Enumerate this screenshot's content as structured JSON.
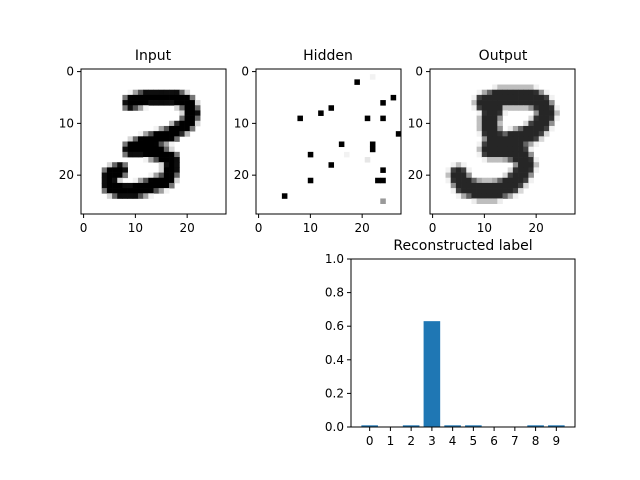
{
  "chart_data": [
    {
      "type": "heatmap",
      "title": "Input",
      "xlim": [
        0,
        27
      ],
      "ylim": [
        27,
        0
      ],
      "x_ticks": [
        "0",
        "10",
        "20"
      ],
      "y_ticks": [
        "0",
        "10",
        "20"
      ],
      "colormap": "gray_r",
      "strokes": [
        [
          [
            9,
            6
          ],
          [
            12,
            5
          ],
          [
            15,
            5
          ],
          [
            18,
            5
          ],
          [
            20,
            6
          ],
          [
            21,
            8
          ],
          [
            20,
            10
          ],
          [
            17,
            12
          ],
          [
            14,
            13
          ],
          [
            11,
            14
          ],
          [
            9,
            15
          ]
        ],
        [
          [
            9,
            15
          ],
          [
            12,
            15
          ],
          [
            15,
            16
          ],
          [
            17,
            17
          ],
          [
            17,
            19
          ],
          [
            16,
            21
          ],
          [
            13,
            22
          ],
          [
            10,
            23
          ],
          [
            7,
            23
          ],
          [
            5,
            22
          ],
          [
            5,
            20
          ],
          [
            7,
            19
          ]
        ]
      ]
    },
    {
      "type": "heatmap",
      "title": "Hidden",
      "xlim": [
        0,
        27
      ],
      "ylim": [
        27,
        0
      ],
      "x_ticks": [
        "0",
        "10",
        "20"
      ],
      "y_ticks": [
        "0",
        "10",
        "20"
      ],
      "colormap": "gray_r",
      "active_units": [
        {
          "x": 19,
          "y": 2,
          "v": 1.0
        },
        {
          "x": 22,
          "y": 1,
          "v": 0.05
        },
        {
          "x": 26,
          "y": 5,
          "v": 1.0
        },
        {
          "x": 24,
          "y": 6,
          "v": 1.0
        },
        {
          "x": 14,
          "y": 7,
          "v": 1.0
        },
        {
          "x": 12,
          "y": 8,
          "v": 1.0
        },
        {
          "x": 8,
          "y": 9,
          "v": 1.0
        },
        {
          "x": 21,
          "y": 9,
          "v": 1.0
        },
        {
          "x": 24,
          "y": 9,
          "v": 1.0
        },
        {
          "x": 27,
          "y": 12,
          "v": 1.0
        },
        {
          "x": 16,
          "y": 14,
          "v": 1.0
        },
        {
          "x": 22,
          "y": 14,
          "v": 1.0
        },
        {
          "x": 22,
          "y": 15,
          "v": 1.0
        },
        {
          "x": 10,
          "y": 16,
          "v": 1.0
        },
        {
          "x": 17,
          "y": 16,
          "v": 0.05
        },
        {
          "x": 21,
          "y": 17,
          "v": 0.1
        },
        {
          "x": 14,
          "y": 18,
          "v": 1.0
        },
        {
          "x": 24,
          "y": 19,
          "v": 1.0
        },
        {
          "x": 10,
          "y": 21,
          "v": 1.0
        },
        {
          "x": 23,
          "y": 21,
          "v": 1.0
        },
        {
          "x": 24,
          "y": 21,
          "v": 1.0
        },
        {
          "x": 5,
          "y": 24,
          "v": 1.0
        },
        {
          "x": 24,
          "y": 25,
          "v": 0.4
        }
      ]
    },
    {
      "type": "heatmap",
      "title": "Output",
      "xlim": [
        0,
        27
      ],
      "ylim": [
        27,
        0
      ],
      "x_ticks": [
        "0",
        "10",
        "20"
      ],
      "y_ticks": [
        "0",
        "10",
        "20"
      ],
      "colormap": "gray_r",
      "strokes": [
        [
          [
            10,
            6
          ],
          [
            13,
            5
          ],
          [
            16,
            5
          ],
          [
            19,
            5
          ],
          [
            21,
            6
          ],
          [
            22,
            8
          ],
          [
            21,
            10
          ],
          [
            19,
            12
          ],
          [
            16,
            13
          ],
          [
            13,
            14
          ],
          [
            11,
            15
          ]
        ],
        [
          [
            11,
            15
          ],
          [
            14,
            15
          ],
          [
            17,
            16
          ],
          [
            18,
            18
          ],
          [
            17,
            20
          ],
          [
            15,
            22
          ],
          [
            12,
            23
          ],
          [
            9,
            23
          ],
          [
            6,
            22
          ],
          [
            5,
            20
          ]
        ],
        [
          [
            12,
            7
          ],
          [
            11,
            9
          ],
          [
            11,
            11
          ],
          [
            12,
            13
          ]
        ]
      ]
    },
    {
      "type": "bar",
      "title": "Reconstructed label",
      "categories": [
        "0",
        "1",
        "2",
        "3",
        "4",
        "5",
        "6",
        "7",
        "8",
        "9"
      ],
      "values": [
        0.01,
        0.0,
        0.01,
        0.63,
        0.01,
        0.01,
        0.0,
        0.0,
        0.01,
        0.01
      ],
      "ylim": [
        0,
        1
      ],
      "y_ticks": [
        "0.0",
        "0.2",
        "0.4",
        "0.6",
        "0.8",
        "1.0"
      ],
      "color": "#1f77b4"
    }
  ]
}
